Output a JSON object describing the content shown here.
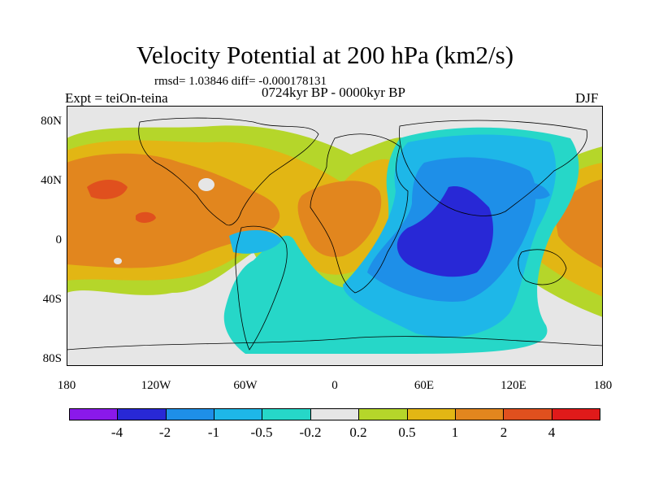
{
  "title": "Velocity Potential at 200 hPa (km2/s)",
  "stats": "rmsd= 1.03846 diff= -0.000178131",
  "left_label": "Expt = teiOn-teina",
  "center_label": "0724kyr BP - 0000kyr BP",
  "right_label": "DJF",
  "lat_labels": [
    "80N",
    "40N",
    "0",
    "40S",
    "80S"
  ],
  "lon_labels": [
    "180",
    "120W",
    "60W",
    "0",
    "60E",
    "120E",
    "180"
  ],
  "colorbar": {
    "colors": [
      "#8a19ea",
      "#2828d6",
      "#1e8fe8",
      "#1eb7e8",
      "#26d7c8",
      "#e6e6e6",
      "#b5d62a",
      "#e2b614",
      "#e2861e",
      "#e0501e",
      "#e01a1a"
    ],
    "labels": [
      "-4",
      "-2",
      "-1",
      "-0.5",
      "-0.2",
      "0.2",
      "0.5",
      "1",
      "2",
      "4"
    ]
  },
  "colors": {
    "neutral": "#e6e6e6",
    "pos_05": "#b5d62a",
    "pos_1": "#e2b614",
    "pos_2": "#e2861e",
    "pos_4": "#e0501e",
    "neg_02": "#26d7c8",
    "neg_05": "#1eb7e8",
    "neg_1": "#1e8fe8",
    "neg_2": "#2828d6"
  }
}
